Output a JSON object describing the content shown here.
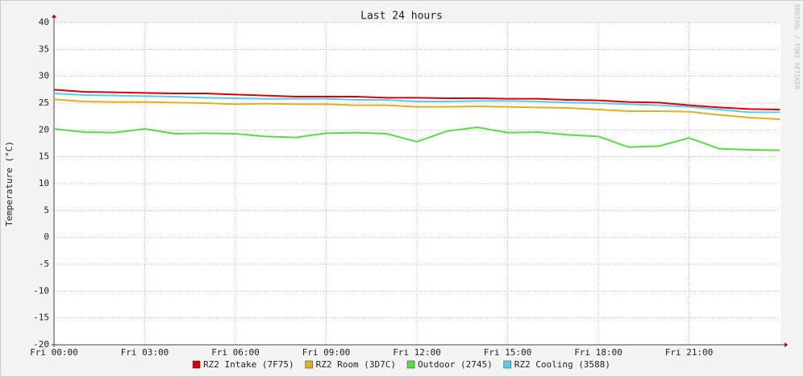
{
  "chart_data": {
    "type": "line",
    "title": "Last 24 hours",
    "y_label": "Temperature (°C)",
    "watermark": "RRDTOOL / TOBI OETIKER",
    "x": [
      0,
      1,
      2,
      3,
      4,
      5,
      6,
      7,
      8,
      9,
      10,
      11,
      12,
      13,
      14,
      15,
      16,
      17,
      18,
      19,
      20,
      21,
      22,
      23,
      24
    ],
    "xlim": [
      0,
      24
    ],
    "xticks": [
      {
        "value": 0,
        "label": "Fri 00:00"
      },
      {
        "value": 3,
        "label": "Fri 03:00"
      },
      {
        "value": 6,
        "label": "Fri 06:00"
      },
      {
        "value": 9,
        "label": "Fri 09:00"
      },
      {
        "value": 12,
        "label": "Fri 12:00"
      },
      {
        "value": 15,
        "label": "Fri 15:00"
      },
      {
        "value": 18,
        "label": "Fri 18:00"
      },
      {
        "value": 21,
        "label": "Fri 21:00"
      }
    ],
    "ylim": [
      -20,
      40
    ],
    "yticks": [
      -20,
      -15,
      -10,
      -5,
      0,
      5,
      10,
      15,
      20,
      25,
      30,
      35,
      40
    ],
    "grid": true,
    "series": [
      {
        "name": "RZ2 Intake (7F75)",
        "color": "#dd0000",
        "values": [
          27.5,
          27.1,
          27,
          26.9,
          26.8,
          26.8,
          26.6,
          26.4,
          26.2,
          26.2,
          26.2,
          26,
          26,
          25.9,
          25.9,
          25.8,
          25.8,
          25.6,
          25.5,
          25.2,
          25.1,
          24.6,
          24.2,
          23.9,
          23.8
        ]
      },
      {
        "name": "RZ2 Room (3D7C)",
        "color": "#e0b020",
        "values": [
          25.7,
          25.3,
          25.2,
          25.2,
          25.1,
          25,
          24.8,
          24.9,
          24.8,
          24.8,
          24.6,
          24.6,
          24.3,
          24.3,
          24.4,
          24.3,
          24.2,
          24.1,
          23.8,
          23.5,
          23.5,
          23.4,
          22.8,
          22.3,
          22
        ]
      },
      {
        "name": "Outdoor (2745)",
        "color": "#55dd44",
        "values": [
          20.2,
          19.6,
          19.5,
          20.2,
          19.3,
          19.4,
          19.3,
          18.8,
          18.6,
          19.4,
          19.5,
          19.3,
          17.8,
          19.8,
          20.5,
          19.5,
          19.6,
          19.1,
          18.8,
          16.8,
          17,
          18.5,
          16.5,
          16.3,
          16.2
        ]
      },
      {
        "name": "RZ2 Cooling (3588)",
        "color": "#55ccee",
        "values": [
          26.8,
          26.5,
          26.4,
          26.3,
          26.2,
          26,
          25.9,
          25.8,
          25.8,
          25.8,
          25.6,
          25.6,
          25.3,
          25.3,
          25.4,
          25.4,
          25.3,
          25.1,
          25,
          24.8,
          24.6,
          24.3,
          23.8,
          23.3,
          23.3
        ]
      }
    ]
  }
}
